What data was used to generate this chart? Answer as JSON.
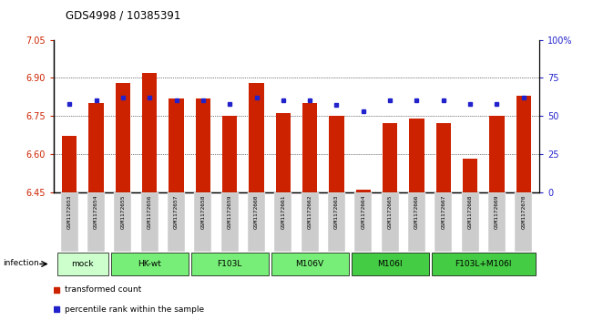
{
  "title": "GDS4998 / 10385391",
  "samples": [
    "GSM1172653",
    "GSM1172654",
    "GSM1172655",
    "GSM1172656",
    "GSM1172657",
    "GSM1172658",
    "GSM1172659",
    "GSM1172660",
    "GSM1172661",
    "GSM1172662",
    "GSM1172663",
    "GSM1172664",
    "GSM1172665",
    "GSM1172666",
    "GSM1172667",
    "GSM1172668",
    "GSM1172669",
    "GSM1172670"
  ],
  "bar_values": [
    6.67,
    6.8,
    6.88,
    6.92,
    6.82,
    6.82,
    6.75,
    6.88,
    6.76,
    6.8,
    6.75,
    6.46,
    6.72,
    6.74,
    6.72,
    6.58,
    6.75,
    6.83
  ],
  "dot_values": [
    58,
    60,
    62,
    62,
    60,
    60,
    58,
    62,
    60,
    60,
    57,
    53,
    60,
    60,
    60,
    58,
    58,
    62
  ],
  "ylim_left": [
    6.45,
    7.05
  ],
  "ylim_right": [
    0,
    100
  ],
  "yticks_left": [
    6.45,
    6.6,
    6.75,
    6.9,
    7.05
  ],
  "yticks_right": [
    0,
    25,
    50,
    75,
    100
  ],
  "ytick_labels_right": [
    "0",
    "25",
    "50",
    "75",
    "100%"
  ],
  "bar_color": "#cc2200",
  "dot_color": "#2222cc",
  "bar_width": 0.55,
  "group_configs": [
    {
      "indices": [
        0,
        1
      ],
      "label": "mock",
      "color": "#ccffcc"
    },
    {
      "indices": [
        2,
        3,
        4
      ],
      "label": "HK-wt",
      "color": "#77ee77"
    },
    {
      "indices": [
        5,
        6,
        7
      ],
      "label": "F103L",
      "color": "#77ee77"
    },
    {
      "indices": [
        8,
        9,
        10
      ],
      "label": "M106V",
      "color": "#77ee77"
    },
    {
      "indices": [
        11,
        12,
        13
      ],
      "label": "M106I",
      "color": "#44cc44"
    },
    {
      "indices": [
        14,
        15,
        16,
        17
      ],
      "label": "F103L+M106I",
      "color": "#44cc44"
    }
  ],
  "infection_label": "infection",
  "legend_items": [
    {
      "label": "transformed count",
      "color": "#cc2200"
    },
    {
      "label": "percentile rank within the sample",
      "color": "#2222cc"
    }
  ],
  "left_tick_color": "#cc2200",
  "right_tick_color": "#2222cc",
  "sample_box_color": "#cccccc",
  "grid_dotted_at": [
    6.6,
    6.75,
    6.9
  ]
}
